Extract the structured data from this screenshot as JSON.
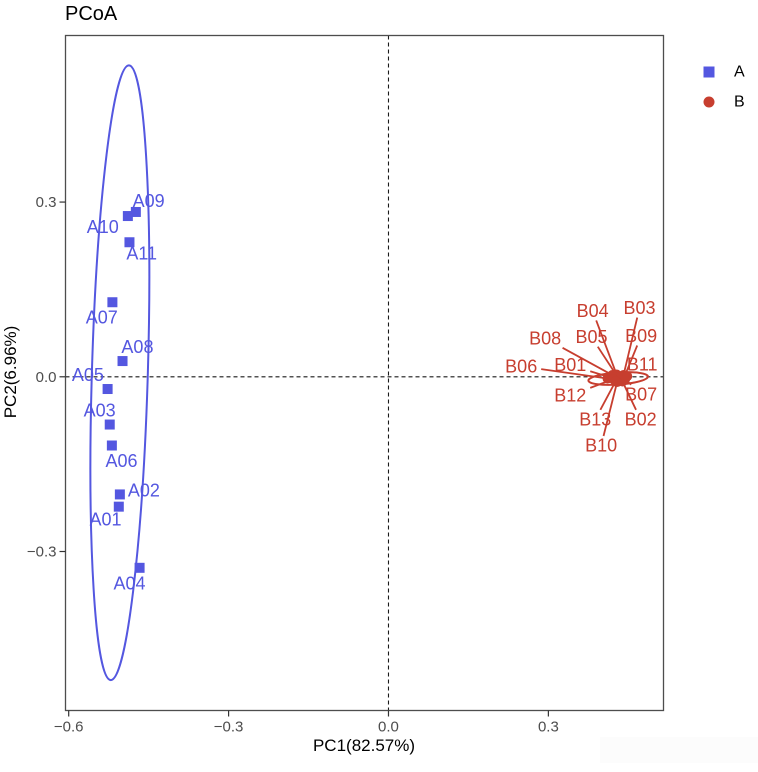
{
  "chart_data": {
    "type": "scatter",
    "title": "PCoA",
    "xlabel": "PC1(82.57%)",
    "ylabel": "PC2(6.96%)",
    "xlim": [
      -0.606,
      0.516
    ],
    "ylim": [
      -0.573,
      0.586
    ],
    "grid": false,
    "zero_lines": "dashed",
    "x_ticks": [
      {
        "value": -0.6,
        "label": "−0.6"
      },
      {
        "value": -0.3,
        "label": "−0.3"
      },
      {
        "value": 0.0,
        "label": "0.0"
      },
      {
        "value": 0.3,
        "label": "0.3"
      }
    ],
    "y_ticks": [
      {
        "value": -0.3,
        "label": "−0.3"
      },
      {
        "value": 0.0,
        "label": "0.0"
      },
      {
        "value": 0.3,
        "label": "0.3"
      }
    ],
    "legend": {
      "position": "right",
      "entries": [
        {
          "label": "A",
          "marker": "square",
          "color": "#5457E0"
        },
        {
          "label": "B",
          "marker": "circle",
          "color": "#C73E2F"
        }
      ]
    },
    "groups": [
      {
        "name": "A",
        "color": "#5457E0",
        "marker": "square",
        "connectors": false,
        "ellipse": {
          "cx": -0.504,
          "cy": 0.007,
          "rx": 0.0525,
          "ry": 0.528,
          "angle_deg": 1.7
        },
        "points": [
          {
            "label": "A01",
            "x": -0.506,
            "y": -0.223,
            "label_x": -0.531,
            "label_y": -0.245
          },
          {
            "label": "A02",
            "x": -0.504,
            "y": -0.202,
            "label_x": -0.459,
            "label_y": -0.195
          },
          {
            "label": "A03",
            "x": -0.523,
            "y": -0.082,
            "label_x": -0.542,
            "label_y": -0.058
          },
          {
            "label": "A04",
            "x": -0.467,
            "y": -0.328,
            "label_x": -0.486,
            "label_y": -0.355
          },
          {
            "label": "A05",
            "x": -0.527,
            "y": -0.021,
            "label_x": -0.564,
            "label_y": 0.003
          },
          {
            "label": "A06",
            "x": -0.519,
            "y": -0.118,
            "label_x": -0.501,
            "label_y": -0.145
          },
          {
            "label": "A07",
            "x": -0.518,
            "y": 0.128,
            "label_x": -0.538,
            "label_y": 0.102
          },
          {
            "label": "A08",
            "x": -0.499,
            "y": 0.027,
            "label_x": -0.471,
            "label_y": 0.051
          },
          {
            "label": "A09",
            "x": -0.474,
            "y": 0.283,
            "label_x": -0.45,
            "label_y": 0.302
          },
          {
            "label": "A10",
            "x": -0.489,
            "y": 0.276,
            "label_x": -0.536,
            "label_y": 0.257
          },
          {
            "label": "A11",
            "x": -0.486,
            "y": 0.231,
            "label_x": -0.463,
            "label_y": 0.212
          }
        ]
      },
      {
        "name": "B",
        "color": "#C73E2F",
        "marker": "circle",
        "connectors": true,
        "ellipse": {
          "cx": 0.431,
          "cy": -0.003,
          "rx": 0.056,
          "ry": 0.0103,
          "angle_deg": -4
        },
        "points": [
          {
            "label": "B01",
            "x": 0.416,
            "y": -0.001,
            "label_x": 0.341,
            "label_y": 0.02
          },
          {
            "label": "B02",
            "x": 0.439,
            "y": -0.008,
            "label_x": 0.473,
            "label_y": -0.073
          },
          {
            "label": "B03",
            "x": 0.441,
            "y": 0.003,
            "label_x": 0.471,
            "label_y": 0.118
          },
          {
            "label": "B04",
            "x": 0.428,
            "y": 0.004,
            "label_x": 0.383,
            "label_y": 0.113
          },
          {
            "label": "B05",
            "x": 0.429,
            "y": 0.001,
            "label_x": 0.381,
            "label_y": 0.068
          },
          {
            "label": "B06",
            "x": 0.411,
            "y": -0.003,
            "label_x": 0.249,
            "label_y": 0.018
          },
          {
            "label": "B07",
            "x": 0.444,
            "y": -0.004,
            "label_x": 0.474,
            "label_y": -0.03
          },
          {
            "label": "B08",
            "x": 0.42,
            "y": 0.003,
            "label_x": 0.294,
            "label_y": 0.066
          },
          {
            "label": "B09",
            "x": 0.443,
            "y": 0.001,
            "label_x": 0.474,
            "label_y": 0.07
          },
          {
            "label": "B10",
            "x": 0.429,
            "y": -0.009,
            "label_x": 0.399,
            "label_y": -0.118
          },
          {
            "label": "B11",
            "x": 0.448,
            "y": 0.001,
            "label_x": 0.476,
            "label_y": 0.021
          },
          {
            "label": "B12",
            "x": 0.422,
            "y": -0.004,
            "label_x": 0.341,
            "label_y": -0.032
          },
          {
            "label": "B13",
            "x": 0.426,
            "y": -0.008,
            "label_x": 0.388,
            "label_y": -0.073
          }
        ]
      }
    ]
  }
}
